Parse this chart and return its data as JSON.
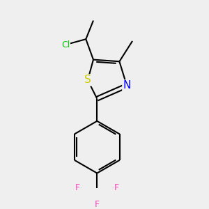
{
  "background_color": "#efefef",
  "atom_colors": {
    "S": "#cccc00",
    "N": "#0000ff",
    "Cl": "#00cc00",
    "F": "#ff44bb",
    "C": "#000000"
  },
  "bond_color": "#000000",
  "bond_width": 1.5,
  "figsize": [
    3.0,
    3.0
  ],
  "dpi": 100
}
